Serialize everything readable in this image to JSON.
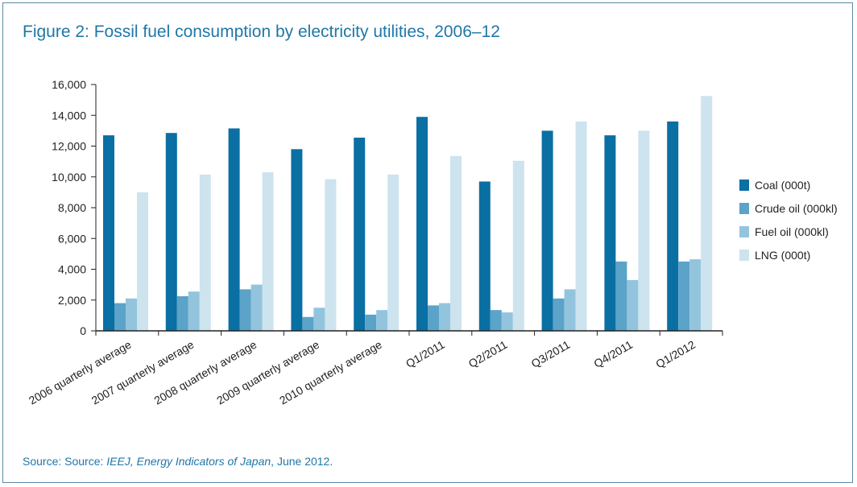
{
  "title": "Figure 2: Fossil fuel consumption by electricity utilities, 2006–12",
  "source": {
    "prefix": "Source: Source: ",
    "publication": "IEEJ, Energy Indicators of Japan",
    "suffix": ", June 2012."
  },
  "colors": {
    "coal": "#0a6fa3",
    "crude": "#5ba3c8",
    "fuel": "#93c4dd",
    "lng": "#cde3ee",
    "title": "#1f77a8",
    "axis": "#222222"
  },
  "chart_data": {
    "type": "bar",
    "title": "Figure 2: Fossil fuel consumption by electricity utilities, 2006–12",
    "xlabel": "",
    "ylabel": "",
    "ylim": [
      0,
      16000
    ],
    "yticks": [
      0,
      2000,
      4000,
      6000,
      8000,
      10000,
      12000,
      14000,
      16000
    ],
    "ytick_labels": [
      "0",
      "2,000",
      "4,000",
      "6,000",
      "8,000",
      "10,000",
      "12,000",
      "14,000",
      "16,000"
    ],
    "grid": false,
    "legend_position": "right",
    "categories": [
      "2006 quarterly average",
      "2007 quarterly average",
      "2008 quarterly average",
      "2009 quarterly average",
      "2010 quarterly average",
      "Q1/2011",
      "Q2/2011",
      "Q3/2011",
      "Q4/2011",
      "Q1/2012"
    ],
    "series": [
      {
        "name": "Coal (000t)",
        "color_key": "coal",
        "values": [
          12700,
          12850,
          13150,
          11800,
          12550,
          13900,
          9700,
          13000,
          12700,
          13600
        ]
      },
      {
        "name": "Crude oil (000kl)",
        "color_key": "crude",
        "values": [
          1800,
          2250,
          2700,
          900,
          1050,
          1650,
          1350,
          2100,
          4500,
          4500
        ]
      },
      {
        "name": "Fuel oil (000kl)",
        "color_key": "fuel",
        "values": [
          2100,
          2550,
          3000,
          1500,
          1350,
          1800,
          1200,
          2700,
          3300,
          4650
        ]
      },
      {
        "name": "LNG (000t)",
        "color_key": "lng",
        "values": [
          9000,
          10150,
          10300,
          9850,
          10150,
          11350,
          11050,
          13600,
          13000,
          15250
        ]
      }
    ]
  }
}
